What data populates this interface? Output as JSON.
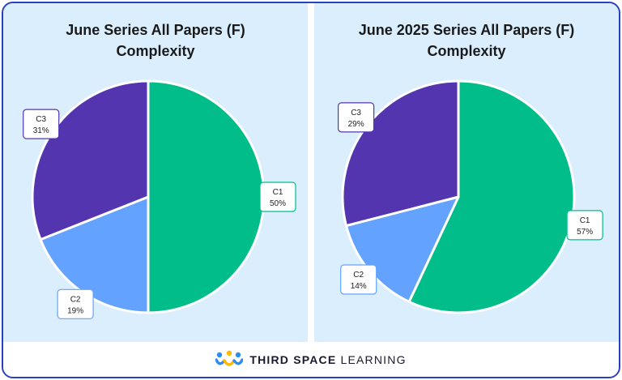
{
  "charts": [
    {
      "title_line1": "June Series All Papers (F)",
      "title_line2": "Complexity"
    },
    {
      "title_line1": "June 2025 Series All Papers (F)",
      "title_line2": "Complexity"
    }
  ],
  "chart_data": [
    {
      "type": "pie",
      "title": "June Series All Papers (F) Complexity",
      "categories": [
        "C1",
        "C2",
        "C3"
      ],
      "values": [
        50,
        19,
        31
      ],
      "labels": [
        "50%",
        "19%",
        "31%"
      ],
      "colors": [
        "#00bd8a",
        "#63a2fe",
        "#5435b0"
      ]
    },
    {
      "type": "pie",
      "title": "June 2025 Series All Papers (F) Complexity",
      "categories": [
        "C1",
        "C2",
        "C3"
      ],
      "values": [
        57,
        14,
        29
      ],
      "labels": [
        "57%",
        "14%",
        "29%"
      ],
      "colors": [
        "#00bd8a",
        "#63a2fe",
        "#5435b0"
      ]
    }
  ],
  "footer": {
    "brand_bold": "THIRD SPACE",
    "brand_light": "LEARNING",
    "logo_icon": "third-space-learning-logo-icon"
  }
}
